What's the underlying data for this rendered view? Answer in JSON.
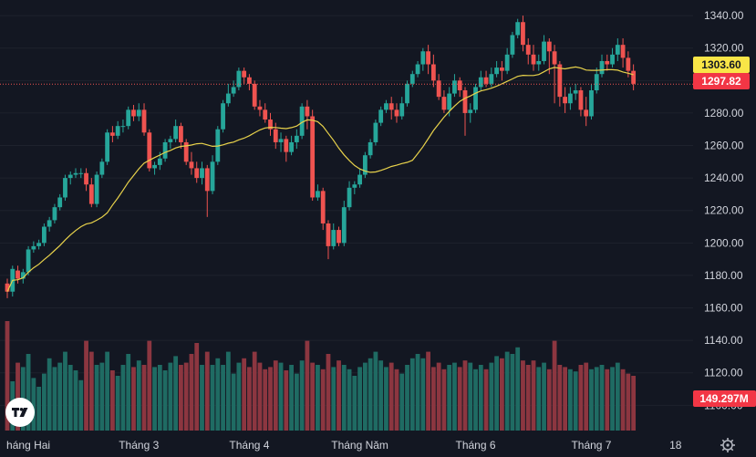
{
  "chart_data": {
    "type": "candlestick",
    "title": "",
    "y_axis": {
      "min": 1094,
      "max": 1344,
      "ticks": [
        1340,
        1320,
        1300,
        1280,
        1260,
        1240,
        1220,
        1200,
        1180,
        1160,
        1140,
        1120,
        1100
      ]
    },
    "x_axis": {
      "ticks": [
        {
          "label": "háng Hai",
          "index": 4
        },
        {
          "label": "Tháng 3",
          "index": 25
        },
        {
          "label": "Tháng 4",
          "index": 46
        },
        {
          "label": "Tháng Năm",
          "index": 67
        },
        {
          "label": "Tháng 6",
          "index": 89
        },
        {
          "label": "Tháng 7",
          "index": 111
        },
        {
          "label": "18",
          "index": 127
        }
      ]
    },
    "last_price": 1297.82,
    "ma_value": 1303.6,
    "volume_last": "149.297M",
    "colors": {
      "up": "#26a69a",
      "down": "#ef5350",
      "up_volume": "#1f6b63",
      "down_volume": "#8c3640",
      "ma": "#e8d24b",
      "background": "#131722",
      "price_badge": "#f23645",
      "ma_badge": "#f9e547"
    },
    "series": [
      {
        "name": "price",
        "values": []
      },
      {
        "name": "MA",
        "values": []
      }
    ],
    "candles": [
      [
        1175,
        1170,
        1178,
        1166,
        100
      ],
      [
        1170,
        1184,
        1186,
        1167,
        45
      ],
      [
        1183,
        1178,
        1186,
        1175,
        62
      ],
      [
        1178,
        1182,
        1184,
        1175,
        58
      ],
      [
        1182,
        1196,
        1198,
        1180,
        70
      ],
      [
        1196,
        1198,
        1201,
        1194,
        48
      ],
      [
        1198,
        1200,
        1202,
        1196,
        40
      ],
      [
        1200,
        1210,
        1212,
        1198,
        52
      ],
      [
        1210,
        1214,
        1216,
        1207,
        66
      ],
      [
        1214,
        1222,
        1224,
        1212,
        58
      ],
      [
        1222,
        1228,
        1230,
        1220,
        62
      ],
      [
        1228,
        1240,
        1242,
        1226,
        72
      ],
      [
        1240,
        1242,
        1244,
        1236,
        60
      ],
      [
        1242,
        1243,
        1246,
        1240,
        55
      ],
      [
        1243,
        1243,
        1246,
        1240,
        46
      ],
      [
        1243,
        1236,
        1246,
        1232,
        82
      ],
      [
        1236,
        1224,
        1240,
        1222,
        72
      ],
      [
        1224,
        1242,
        1244,
        1222,
        60
      ],
      [
        1242,
        1250,
        1252,
        1240,
        62
      ],
      [
        1250,
        1268,
        1270,
        1248,
        72
      ],
      [
        1268,
        1266,
        1272,
        1262,
        55
      ],
      [
        1266,
        1272,
        1275,
        1264,
        50
      ],
      [
        1272,
        1272,
        1276,
        1268,
        60
      ],
      [
        1272,
        1282,
        1284,
        1270,
        70
      ],
      [
        1282,
        1278,
        1285,
        1275,
        58
      ],
      [
        1278,
        1282,
        1286,
        1275,
        64
      ],
      [
        1282,
        1268,
        1286,
        1266,
        60
      ],
      [
        1268,
        1246,
        1270,
        1244,
        82
      ],
      [
        1246,
        1248,
        1250,
        1242,
        58
      ],
      [
        1248,
        1252,
        1256,
        1245,
        60
      ],
      [
        1252,
        1262,
        1264,
        1250,
        55
      ],
      [
        1262,
        1264,
        1266,
        1258,
        62
      ],
      [
        1264,
        1272,
        1276,
        1262,
        68
      ],
      [
        1272,
        1262,
        1274,
        1258,
        60
      ],
      [
        1262,
        1250,
        1264,
        1248,
        62
      ],
      [
        1250,
        1246,
        1256,
        1242,
        70
      ],
      [
        1246,
        1240,
        1250,
        1237,
        80
      ],
      [
        1240,
        1246,
        1250,
        1236,
        60
      ],
      [
        1246,
        1232,
        1248,
        1216,
        72
      ],
      [
        1232,
        1250,
        1254,
        1230,
        60
      ],
      [
        1250,
        1270,
        1272,
        1248,
        66
      ],
      [
        1270,
        1286,
        1288,
        1268,
        60
      ],
      [
        1286,
        1292,
        1298,
        1284,
        72
      ],
      [
        1292,
        1296,
        1300,
        1290,
        52
      ],
      [
        1296,
        1306,
        1308,
        1294,
        62
      ],
      [
        1306,
        1302,
        1308,
        1298,
        66
      ],
      [
        1302,
        1298,
        1304,
        1294,
        58
      ],
      [
        1298,
        1284,
        1300,
        1282,
        72
      ],
      [
        1284,
        1282,
        1288,
        1278,
        62
      ],
      [
        1282,
        1276,
        1286,
        1274,
        56
      ],
      [
        1276,
        1270,
        1280,
        1266,
        58
      ],
      [
        1270,
        1262,
        1274,
        1258,
        64
      ],
      [
        1262,
        1264,
        1268,
        1256,
        62
      ],
      [
        1264,
        1256,
        1266,
        1250,
        55
      ],
      [
        1256,
        1262,
        1266,
        1254,
        60
      ],
      [
        1262,
        1266,
        1270,
        1258,
        52
      ],
      [
        1266,
        1284,
        1286,
        1264,
        64
      ],
      [
        1284,
        1278,
        1288,
        1270,
        82
      ],
      [
        1278,
        1228,
        1282,
        1226,
        62
      ],
      [
        1228,
        1232,
        1236,
        1226,
        60
      ],
      [
        1232,
        1212,
        1234,
        1208,
        56
      ],
      [
        1212,
        1198,
        1214,
        1190,
        70
      ],
      [
        1198,
        1208,
        1212,
        1196,
        58
      ],
      [
        1208,
        1200,
        1210,
        1198,
        64
      ],
      [
        1200,
        1222,
        1226,
        1198,
        60
      ],
      [
        1222,
        1234,
        1238,
        1220,
        56
      ],
      [
        1234,
        1236,
        1238,
        1230,
        50
      ],
      [
        1236,
        1242,
        1246,
        1234,
        58
      ],
      [
        1242,
        1254,
        1256,
        1240,
        62
      ],
      [
        1254,
        1262,
        1264,
        1252,
        66
      ],
      [
        1262,
        1274,
        1276,
        1260,
        72
      ],
      [
        1274,
        1282,
        1284,
        1272,
        64
      ],
      [
        1282,
        1286,
        1288,
        1280,
        58
      ],
      [
        1286,
        1282,
        1290,
        1276,
        62
      ],
      [
        1282,
        1278,
        1286,
        1274,
        56
      ],
      [
        1278,
        1286,
        1290,
        1276,
        52
      ],
      [
        1286,
        1298,
        1300,
        1284,
        60
      ],
      [
        1298,
        1304,
        1306,
        1296,
        66
      ],
      [
        1304,
        1310,
        1312,
        1302,
        70
      ],
      [
        1310,
        1318,
        1320,
        1306,
        66
      ],
      [
        1318,
        1310,
        1322,
        1304,
        72
      ],
      [
        1310,
        1300,
        1316,
        1296,
        58
      ],
      [
        1300,
        1290,
        1304,
        1288,
        62
      ],
      [
        1290,
        1282,
        1294,
        1280,
        56
      ],
      [
        1282,
        1292,
        1296,
        1278,
        60
      ],
      [
        1292,
        1300,
        1304,
        1290,
        62
      ],
      [
        1300,
        1294,
        1302,
        1290,
        58
      ],
      [
        1294,
        1280,
        1296,
        1266,
        64
      ],
      [
        1280,
        1282,
        1286,
        1274,
        62
      ],
      [
        1282,
        1296,
        1298,
        1280,
        56
      ],
      [
        1296,
        1302,
        1306,
        1294,
        60
      ],
      [
        1302,
        1298,
        1306,
        1296,
        56
      ],
      [
        1298,
        1304,
        1308,
        1296,
        62
      ],
      [
        1304,
        1308,
        1312,
        1302,
        68
      ],
      [
        1308,
        1306,
        1312,
        1300,
        66
      ],
      [
        1306,
        1316,
        1320,
        1304,
        72
      ],
      [
        1316,
        1328,
        1330,
        1314,
        70
      ],
      [
        1328,
        1336,
        1338,
        1326,
        76
      ],
      [
        1336,
        1322,
        1340,
        1318,
        64
      ],
      [
        1322,
        1316,
        1326,
        1310,
        60
      ],
      [
        1316,
        1310,
        1322,
        1306,
        64
      ],
      [
        1310,
        1312,
        1316,
        1306,
        58
      ],
      [
        1312,
        1324,
        1328,
        1310,
        62
      ],
      [
        1324,
        1318,
        1326,
        1304,
        56
      ],
      [
        1318,
        1310,
        1322,
        1286,
        82
      ],
      [
        1310,
        1290,
        1312,
        1284,
        60
      ],
      [
        1290,
        1286,
        1296,
        1280,
        58
      ],
      [
        1286,
        1292,
        1296,
        1282,
        56
      ],
      [
        1292,
        1294,
        1298,
        1288,
        54
      ],
      [
        1294,
        1282,
        1296,
        1278,
        60
      ],
      [
        1282,
        1278,
        1290,
        1272,
        62
      ],
      [
        1278,
        1294,
        1298,
        1276,
        56
      ],
      [
        1294,
        1304,
        1308,
        1292,
        58
      ],
      [
        1304,
        1312,
        1316,
        1302,
        60
      ],
      [
        1312,
        1310,
        1316,
        1306,
        56
      ],
      [
        1310,
        1316,
        1320,
        1308,
        58
      ],
      [
        1316,
        1322,
        1326,
        1312,
        62
      ],
      [
        1322,
        1314,
        1326,
        1308,
        56
      ],
      [
        1314,
        1306,
        1318,
        1302,
        52
      ],
      [
        1306,
        1298,
        1310,
        1294,
        50
      ]
    ]
  }
}
